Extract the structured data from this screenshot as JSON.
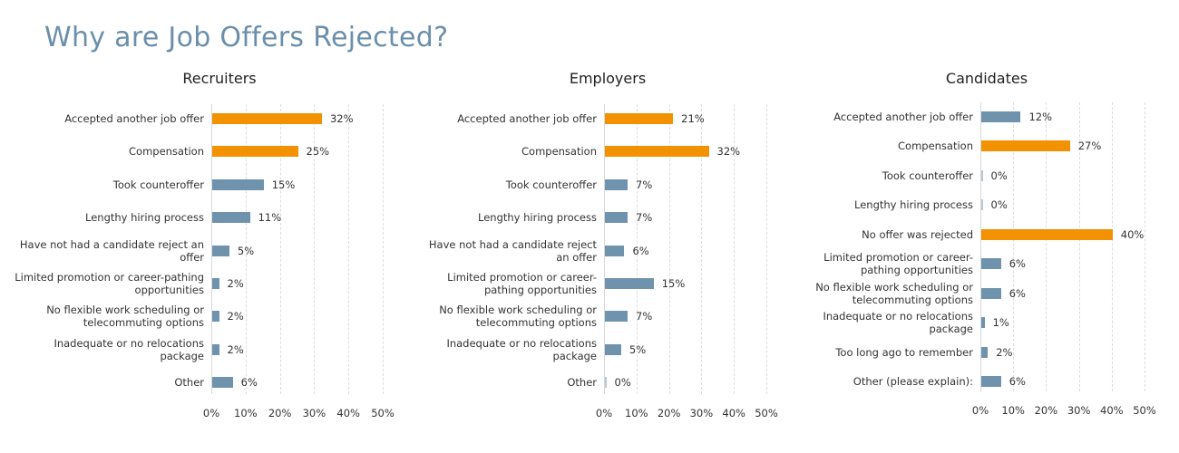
{
  "title": "Why are Job Offers Rejected?",
  "colors": {
    "highlight": "#f39200",
    "default": "#6f93ad",
    "title": "#6b8faa"
  },
  "chart_data": [
    {
      "type": "bar",
      "orientation": "horizontal",
      "title": "Recruiters",
      "categories": [
        "Accepted another job offer",
        "Compensation",
        "Took counteroffer",
        "Lengthy hiring process",
        "Have not had a candidate reject an offer",
        "Limited promotion or career-pathing opportunities",
        "No flexible work scheduling or telecommuting options",
        "Inadequate or no relocations package",
        "Other"
      ],
      "values": [
        32,
        25,
        15,
        11,
        5,
        2,
        2,
        2,
        6
      ],
      "labels": [
        "32%",
        "25%",
        "15%",
        "11%",
        "5%",
        "2%",
        "2%",
        "2%",
        "6%"
      ],
      "highlighted": [
        true,
        true,
        false,
        false,
        false,
        false,
        false,
        false,
        false
      ],
      "xlim": [
        0,
        50
      ],
      "ticks": [
        "0%",
        "10%",
        "20%",
        "30%",
        "40%",
        "50%"
      ],
      "grid": true
    },
    {
      "type": "bar",
      "orientation": "horizontal",
      "title": "Employers",
      "categories": [
        "Accepted another job offer",
        "Compensation",
        "Took counteroffer",
        "Lengthy hiring process",
        "Have not had a candidate reject an offer",
        "Limited promotion or career-pathing opportunities",
        "No flexible work scheduling or telecommuting options",
        "Inadequate or no relocations package",
        "Other"
      ],
      "values": [
        21,
        32,
        7,
        7,
        6,
        15,
        7,
        5,
        0
      ],
      "labels": [
        "21%",
        "32%",
        "7%",
        "7%",
        "6%",
        "15%",
        "7%",
        "5%",
        "0%"
      ],
      "highlighted": [
        true,
        true,
        false,
        false,
        false,
        false,
        false,
        false,
        false
      ],
      "xlim": [
        0,
        50
      ],
      "ticks": [
        "0%",
        "10%",
        "20%",
        "30%",
        "40%",
        "50%"
      ],
      "grid": true
    },
    {
      "type": "bar",
      "orientation": "horizontal",
      "title": "Candidates",
      "categories": [
        "Accepted another job offer",
        "Compensation",
        "Took counteroffer",
        "Lengthy hiring process",
        "No offer was rejected",
        "Limited promotion or career-pathing opportunities",
        "No flexible work scheduling or telecommuting options",
        "Inadequate or no relocations package",
        "Too long ago to remember",
        "Other (please explain):"
      ],
      "values": [
        12,
        27,
        0,
        0,
        40,
        6,
        6,
        1,
        2,
        6
      ],
      "labels": [
        "12%",
        "27%",
        "0%",
        "0%",
        "40%",
        "6%",
        "6%",
        "1%",
        "2%",
        "6%"
      ],
      "highlighted": [
        false,
        true,
        false,
        false,
        true,
        false,
        false,
        false,
        false,
        false
      ],
      "xlim": [
        0,
        50
      ],
      "ticks": [
        "0%",
        "10%",
        "20%",
        "30%",
        "40%",
        "50%"
      ],
      "grid": true
    }
  ]
}
